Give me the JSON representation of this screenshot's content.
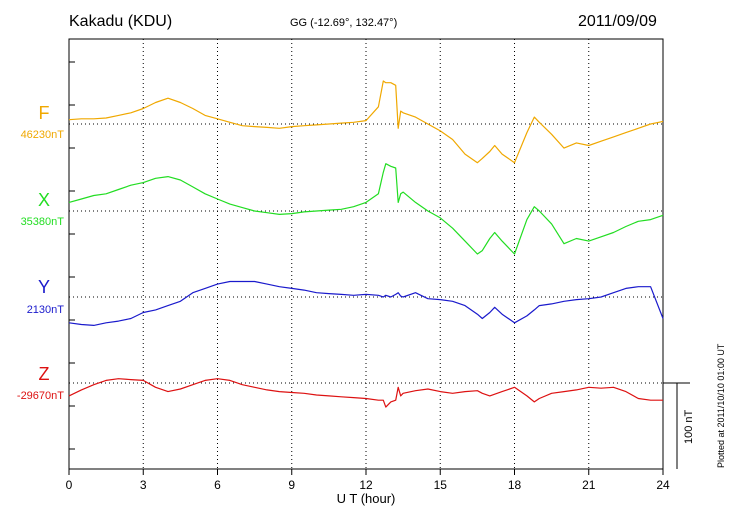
{
  "station": "Kakadu (KDU)",
  "coords": "GG (-12.69°, 132.47°)",
  "date": "2011/09/09",
  "plotted_note": "Plotted at 2011/10/10 01:00 UT",
  "colors": {
    "F": "#f0a800",
    "X": "#22dd22",
    "Y": "#1a1acc",
    "Z": "#dd1111"
  },
  "chart_data": {
    "type": "line",
    "title": "Kakadu (KDU)",
    "xlabel": "U T (hour)",
    "ylabel": "",
    "xlim": [
      0,
      24
    ],
    "xticks": [
      "0",
      "3",
      "6",
      "9",
      "12",
      "15",
      "18",
      "21",
      "24"
    ],
    "x": [
      0,
      0.5,
      1,
      1.5,
      2,
      2.5,
      3,
      3.5,
      4,
      4.5,
      5,
      5.5,
      6,
      6.5,
      7,
      7.5,
      8,
      8.5,
      9,
      9.5,
      10,
      10.5,
      11,
      11.5,
      12,
      12.5,
      12.7,
      12.8,
      13,
      13.2,
      13.3,
      13.4,
      13.5,
      14,
      14.5,
      15,
      15.5,
      16,
      16.5,
      16.7,
      17,
      17.2,
      17.5,
      18,
      18.5,
      18.8,
      19,
      19.5,
      20,
      20.5,
      21,
      21.5,
      22,
      22.5,
      23,
      23.5,
      24
    ],
    "grid": true,
    "scale_bar": "100 nT",
    "series": [
      {
        "name": "F",
        "baseline_label": "46230nT",
        "values": [
          5,
          6,
          6,
          7,
          10,
          13,
          18,
          25,
          30,
          25,
          18,
          10,
          6,
          2,
          -2,
          -3,
          -4,
          -5,
          -3,
          -2,
          -1,
          0,
          1,
          2,
          4,
          20,
          50,
          48,
          48,
          45,
          -5,
          15,
          13,
          8,
          0,
          -8,
          -18,
          -35,
          -45,
          -40,
          -32,
          -25,
          -35,
          -45,
          -10,
          8,
          2,
          -12,
          -28,
          -22,
          -25,
          -20,
          -15,
          -10,
          -5,
          0,
          3
        ]
      },
      {
        "name": "X",
        "baseline_label": "35380nT",
        "values": [
          10,
          14,
          18,
          20,
          25,
          30,
          33,
          38,
          40,
          36,
          28,
          20,
          14,
          8,
          4,
          0,
          -2,
          -4,
          -3,
          -1,
          0,
          1,
          2,
          5,
          10,
          20,
          45,
          55,
          52,
          50,
          10,
          20,
          22,
          10,
          0,
          -8,
          -20,
          -35,
          -50,
          -46,
          -32,
          -25,
          -35,
          -50,
          -10,
          5,
          0,
          -15,
          -38,
          -32,
          -35,
          -30,
          -25,
          -18,
          -12,
          -10,
          -5
        ]
      },
      {
        "name": "Y",
        "baseline_label": "2130nT",
        "values": [
          -30,
          -32,
          -33,
          -30,
          -28,
          -25,
          -18,
          -15,
          -10,
          -5,
          5,
          10,
          15,
          18,
          18,
          18,
          15,
          12,
          10,
          8,
          5,
          4,
          3,
          2,
          3,
          2,
          0,
          2,
          0,
          3,
          5,
          1,
          0,
          5,
          -2,
          -3,
          -5,
          -10,
          -20,
          -25,
          -18,
          -12,
          -20,
          -30,
          -22,
          -15,
          -10,
          -8,
          -5,
          -3,
          -2,
          0,
          5,
          10,
          12,
          12,
          -25
        ]
      },
      {
        "name": "Z",
        "baseline_label": "-29670nT",
        "values": [
          -15,
          -8,
          -2,
          3,
          5,
          4,
          3,
          -5,
          -10,
          -7,
          -2,
          3,
          5,
          3,
          -2,
          -5,
          -8,
          -10,
          -11,
          -12,
          -14,
          -15,
          -16,
          -17,
          -18,
          -20,
          -20,
          -28,
          -22,
          -20,
          -5,
          -15,
          -12,
          -9,
          -7,
          -10,
          -12,
          -10,
          -9,
          -12,
          -15,
          -13,
          -10,
          -5,
          -15,
          -22,
          -18,
          -12,
          -10,
          -8,
          -5,
          -6,
          -5,
          -10,
          -18,
          -20,
          -20
        ]
      }
    ]
  }
}
